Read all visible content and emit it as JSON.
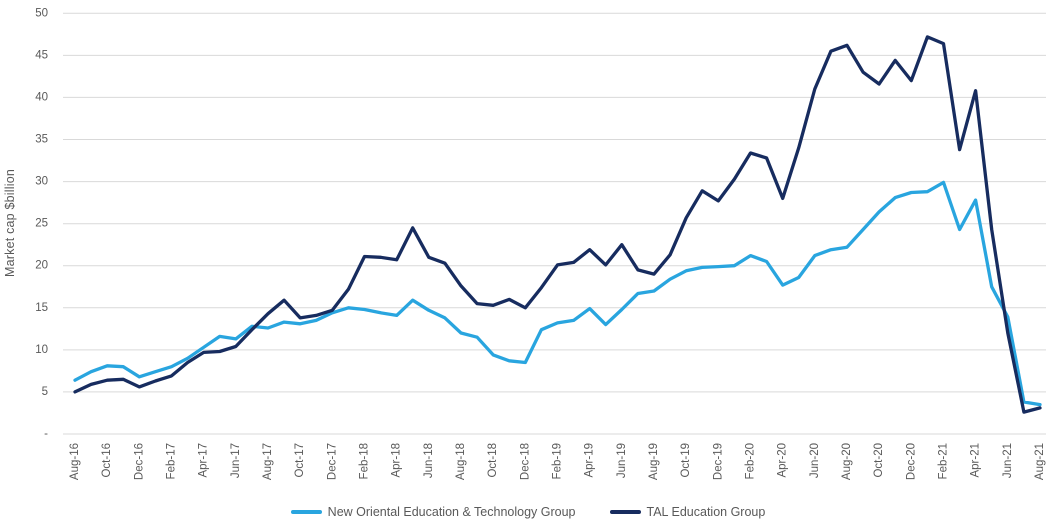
{
  "chart_data": {
    "type": "line",
    "title": "",
    "xlabel": "",
    "ylabel": "Market cap $billion",
    "ylim": [
      0,
      50
    ],
    "ytick_interval": 5,
    "ytick_labels": [
      "-",
      "5",
      "10",
      "15",
      "20",
      "25",
      "30",
      "35",
      "40",
      "45",
      "50"
    ],
    "grid": true,
    "gridline_color": "#D9D9D9",
    "axis_text_color": "#595959",
    "legend_position": "bottom",
    "x_tick_every": 2,
    "x": [
      "Aug-16",
      "Sep-16",
      "Oct-16",
      "Nov-16",
      "Dec-16",
      "Jan-17",
      "Feb-17",
      "Mar-17",
      "Apr-17",
      "May-17",
      "Jun-17",
      "Jul-17",
      "Aug-17",
      "Sep-17",
      "Oct-17",
      "Nov-17",
      "Dec-17",
      "Jan-18",
      "Feb-18",
      "Mar-18",
      "Apr-18",
      "May-18",
      "Jun-18",
      "Jul-18",
      "Aug-18",
      "Sep-18",
      "Oct-18",
      "Nov-18",
      "Dec-18",
      "Jan-19",
      "Feb-19",
      "Mar-19",
      "Apr-19",
      "May-19",
      "Jun-19",
      "Jul-19",
      "Aug-19",
      "Sep-19",
      "Oct-19",
      "Nov-19",
      "Dec-19",
      "Jan-20",
      "Feb-20",
      "Mar-20",
      "Apr-20",
      "May-20",
      "Jun-20",
      "Jul-20",
      "Aug-20",
      "Sep-20",
      "Oct-20",
      "Nov-20",
      "Dec-20",
      "Jan-21",
      "Feb-21",
      "Mar-21",
      "Apr-21",
      "May-21",
      "Jun-21",
      "Jul-21",
      "Aug-21"
    ],
    "series": [
      {
        "name": "New Oriental Education & Technology Group",
        "color": "#29A5DF",
        "values": [
          6.4,
          7.4,
          8.1,
          8.0,
          6.8,
          7.4,
          8.0,
          9.0,
          10.3,
          11.6,
          11.3,
          12.8,
          12.6,
          13.3,
          13.1,
          13.5,
          14.4,
          15.0,
          14.8,
          14.4,
          14.1,
          15.9,
          14.7,
          13.8,
          12.0,
          11.5,
          9.4,
          8.7,
          8.5,
          12.4,
          13.2,
          13.5,
          14.9,
          13.0,
          14.8,
          16.7,
          17.0,
          18.4,
          19.4,
          19.8,
          19.9,
          20.0,
          21.2,
          20.5,
          17.7,
          18.6,
          21.2,
          21.9,
          22.2,
          24.3,
          26.4,
          28.1,
          28.7,
          28.8,
          29.9,
          24.3,
          27.8,
          17.5,
          13.9,
          3.8,
          3.5
        ]
      },
      {
        "name": "TAL Education Group",
        "color": "#172C5F",
        "values": [
          5.0,
          5.9,
          6.4,
          6.5,
          5.6,
          6.3,
          6.9,
          8.5,
          9.7,
          9.8,
          10.4,
          12.4,
          14.3,
          15.9,
          13.8,
          14.1,
          14.7,
          17.2,
          21.1,
          21.0,
          20.7,
          24.5,
          21.0,
          20.3,
          17.6,
          15.5,
          15.3,
          16.0,
          15.0,
          17.4,
          20.1,
          20.4,
          21.9,
          20.1,
          22.5,
          19.5,
          19.0,
          21.3,
          25.7,
          28.9,
          27.7,
          30.3,
          33.4,
          32.8,
          28.0,
          34.0,
          41.0,
          45.5,
          46.2,
          43.0,
          41.6,
          44.4,
          42.0,
          47.2,
          46.4,
          33.8,
          40.8,
          24.3,
          12.0,
          2.6,
          3.1
        ]
      }
    ]
  }
}
